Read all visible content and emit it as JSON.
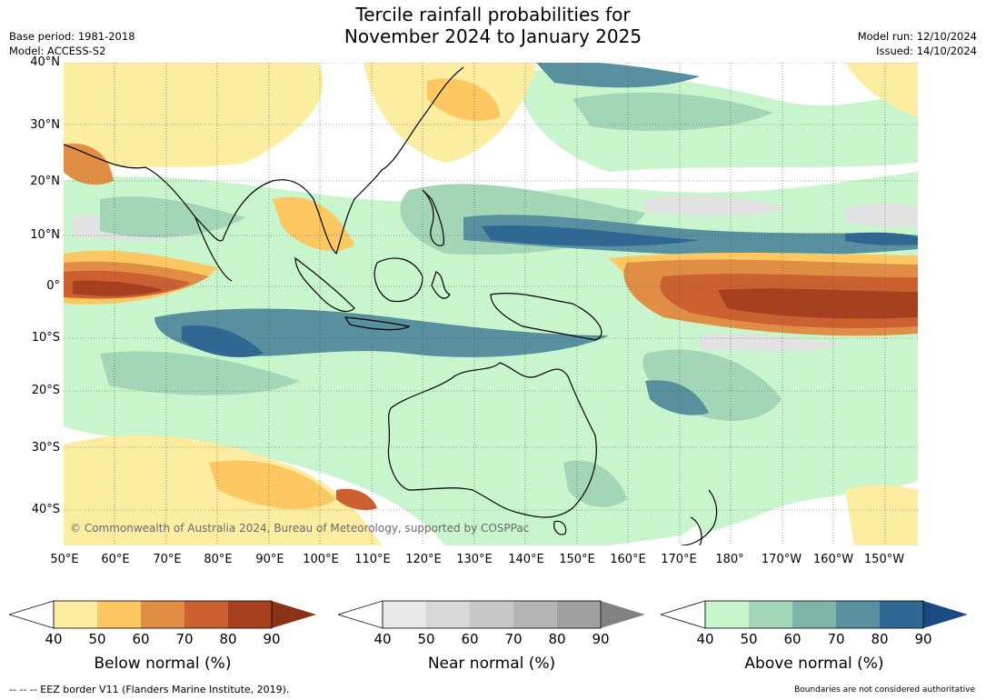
{
  "title_line1": "Tercile rainfall probabilities for",
  "title_line2": "November 2024 to January 2025",
  "base_period": "Base period: 1981-2018",
  "model": "Model: ACCESS-S2",
  "model_run": "Model run: 12/10/2024",
  "issued": "Issued: 14/10/2024",
  "lat_labels": [
    "40°N",
    "30°N",
    "20°N",
    "10°N",
    "0°",
    "10°S",
    "20°S",
    "30°S",
    "40°S"
  ],
  "lon_labels": [
    "50°E",
    "60°E",
    "70°E",
    "80°E",
    "90°E",
    "100°E",
    "110°E",
    "120°E",
    "130°E",
    "140°E",
    "150°E",
    "160°E",
    "170°E",
    "180°",
    "170°W",
    "160°W",
    "150°W"
  ],
  "copyright": "© Commonwealth of Australia 2024, Bureau of Meteorology, supported by COSPPac",
  "colorbars": {
    "below": {
      "title": "Below normal (%)",
      "ticks": [
        "40",
        "50",
        "60",
        "70",
        "80",
        "90"
      ],
      "colors": [
        "#fdeda0",
        "#fdc762",
        "#e08e45",
        "#cc6030",
        "#a8401f",
        "#8b3217"
      ]
    },
    "near": {
      "title": "Near normal (%)",
      "ticks": [
        "40",
        "50",
        "60",
        "70",
        "80",
        "90"
      ],
      "colors": [
        "#e8e8e8",
        "#d8d8d8",
        "#c8c8c8",
        "#b5b5b5",
        "#a0a0a0",
        "#828282"
      ]
    },
    "above": {
      "title": "Above normal (%)",
      "ticks": [
        "40",
        "50",
        "60",
        "70",
        "80",
        "90"
      ],
      "colors": [
        "#c8f5cc",
        "#a2d6b6",
        "#7eb5ab",
        "#5890a0",
        "#306894",
        "#1a4a82"
      ]
    }
  },
  "eez_note": "--  --  -- EEZ border V11 (Flanders Marine Institute, 2019).",
  "boundaries_note": "Boundaries are not considered authoritative"
}
